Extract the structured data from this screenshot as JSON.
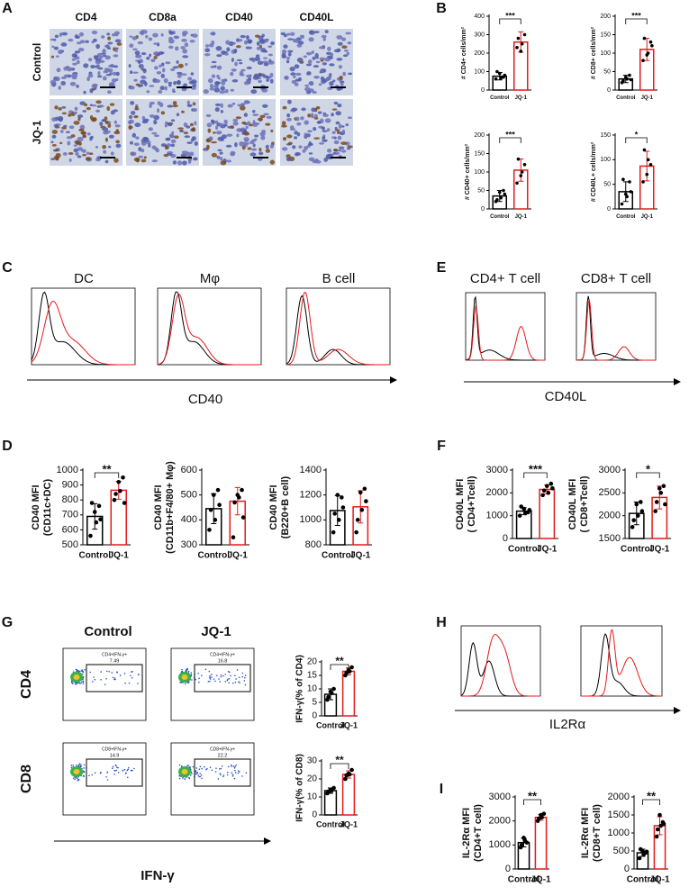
{
  "panel_labels": [
    "A",
    "B",
    "C",
    "D",
    "E",
    "F",
    "G",
    "H",
    "I"
  ],
  "ihc": {
    "columns": [
      "CD4",
      "CD8a",
      "CD40",
      "CD40L"
    ],
    "rows": [
      "Control",
      "JQ-1"
    ]
  },
  "flow_C": {
    "titles": [
      "DC",
      "Mφ",
      "B cell"
    ],
    "axis": "CD40"
  },
  "flow_E": {
    "titles": [
      "CD4+ T cell",
      "CD8+ T cell"
    ],
    "axis": "CD40L"
  },
  "flow_G": {
    "columns": [
      "Control",
      "JQ-1"
    ],
    "rows": [
      "CD4",
      "CD8"
    ],
    "axis": "IFN-γ",
    "gates": [
      [
        "CD4+IFN-γ+",
        "7.49"
      ],
      [
        "CD4+IFN-γ+",
        "16.8"
      ],
      [
        "CD8+IFN-γ+",
        "14.9"
      ],
      [
        "CD8+IFN-γ+",
        "22.2"
      ]
    ]
  },
  "flow_H": {
    "axis": "IL2Rα"
  },
  "chart_data": [
    {
      "type": "bar",
      "ylabel": "# CD4+ cells/mm²",
      "categories": [
        "Control",
        "JQ-1"
      ],
      "colors": [
        "#000000",
        "#e41a1c"
      ],
      "values": [
        75,
        260
      ],
      "errors": [
        20,
        55
      ],
      "points": [
        [
          60,
          90,
          70,
          100,
          65,
          80
        ],
        [
          230,
          210,
          300,
          280,
          250
        ]
      ],
      "ylim": [
        0,
        400
      ],
      "yticks": [
        0,
        100,
        200,
        300,
        400
      ],
      "significance": "***"
    },
    {
      "type": "bar",
      "ylabel": "# CD8+ cells/mm²",
      "categories": [
        "Control",
        "JQ-1"
      ],
      "colors": [
        "#000000",
        "#e41a1c"
      ],
      "values": [
        30,
        110
      ],
      "errors": [
        10,
        30
      ],
      "points": [
        [
          20,
          35,
          40,
          25,
          30,
          28
        ],
        [
          80,
          95,
          130,
          140,
          100,
          120
        ]
      ],
      "ylim": [
        0,
        200
      ],
      "yticks": [
        0,
        50,
        100,
        150,
        200
      ],
      "significance": "***"
    },
    {
      "type": "bar",
      "ylabel": "# CD40+ cells/mm²",
      "categories": [
        "Control",
        "JQ-1"
      ],
      "colors": [
        "#000000",
        "#e41a1c"
      ],
      "values": [
        35,
        105
      ],
      "errors": [
        15,
        30
      ],
      "points": [
        [
          20,
          45,
          50,
          25,
          30,
          40
        ],
        [
          70,
          90,
          120,
          135,
          100
        ]
      ],
      "ylim": [
        0,
        200
      ],
      "yticks": [
        0,
        50,
        100,
        150,
        200
      ],
      "significance": "***"
    },
    {
      "type": "bar",
      "ylabel": "# CD40L+ cells/mm²",
      "categories": [
        "Control",
        "JQ-1"
      ],
      "colors": [
        "#000000",
        "#e41a1c"
      ],
      "values": [
        35,
        87
      ],
      "errors": [
        20,
        30
      ],
      "points": [
        [
          10,
          30,
          55,
          60,
          25,
          35
        ],
        [
          55,
          70,
          90,
          120,
          100
        ]
      ],
      "ylim": [
        0,
        150
      ],
      "yticks": [
        0,
        50,
        100,
        150
      ],
      "significance": "*"
    },
    {
      "type": "bar",
      "ylabel": [
        "CD40 MFI",
        "(CD11c+DC)"
      ],
      "categories": [
        "Control",
        "JQ-1"
      ],
      "colors": [
        "#000000",
        "#e41a1c"
      ],
      "values": [
        690,
        865
      ],
      "errors": [
        85,
        60
      ],
      "points": [
        [
          560,
          720,
          760,
          780,
          650,
          670
        ],
        [
          800,
          920,
          950,
          840,
          860,
          780
        ]
      ],
      "ylim": [
        500,
        1000
      ],
      "yticks": [
        500,
        600,
        700,
        800,
        900,
        1000
      ],
      "significance": "**"
    },
    {
      "type": "bar",
      "ylabel": [
        "CD40 MFI",
        "(CD11b+F4/80+ Mφ)"
      ],
      "categories": [
        "Control",
        "JQ-1"
      ],
      "colors": [
        "#000000",
        "#e41a1c"
      ],
      "values": [
        445,
        475
      ],
      "errors": [
        60,
        55
      ],
      "points": [
        [
          360,
          500,
          520,
          440,
          400,
          460
        ],
        [
          330,
          500,
          520,
          470,
          490,
          410
        ]
      ],
      "ylim": [
        300,
        600
      ],
      "yticks": [
        300,
        400,
        500,
        600
      ]
    },
    {
      "type": "bar",
      "ylabel": [
        "CD40 MFI",
        "(B220+B cell)"
      ],
      "categories": [
        "Control",
        "JQ-1"
      ],
      "colors": [
        "#000000",
        "#e41a1c"
      ],
      "values": [
        1075,
        1105
      ],
      "errors": [
        120,
        130
      ],
      "points": [
        [
          900,
          1200,
          1180,
          1050,
          1000,
          1100
        ],
        [
          900,
          1220,
          1250,
          1000,
          1080,
          1150
        ]
      ],
      "ylim": [
        800,
        1400
      ],
      "yticks": [
        800,
        1000,
        1200,
        1400
      ]
    },
    {
      "type": "bar",
      "ylabel": [
        "CD40L MFI",
        "( CD4+Tcell)"
      ],
      "categories": [
        "Control",
        "JQ-1"
      ],
      "colors": [
        "#000000",
        "#e41a1c"
      ],
      "values": [
        1200,
        2150
      ],
      "errors": [
        150,
        200
      ],
      "points": [
        [
          1000,
          1300,
          1150,
          1400,
          1100,
          1250
        ],
        [
          1900,
          2300,
          2400,
          2100,
          2000,
          2200
        ]
      ],
      "ylim": [
        0,
        3000
      ],
      "yticks": [
        0,
        1000,
        2000,
        3000
      ],
      "significance": "***"
    },
    {
      "type": "bar",
      "ylabel": [
        "CD40L MFI",
        "( CD8+Tcell)"
      ],
      "categories": [
        "Control",
        "JQ-1"
      ],
      "colors": [
        "#000000",
        "#e41a1c"
      ],
      "values": [
        2050,
        2400
      ],
      "errors": [
        250,
        250
      ],
      "points": [
        [
          1750,
          2250,
          2300,
          1900,
          2000,
          2100
        ],
        [
          2100,
          2600,
          2650,
          2300,
          2500,
          2250
        ]
      ],
      "ylim": [
        1500,
        3000
      ],
      "yticks": [
        1500,
        2000,
        2500,
        3000
      ],
      "significance": "*"
    },
    {
      "type": "bar",
      "ylabel": "IFN-γ(% of CD4)",
      "categories": [
        "Control",
        "JQ-1"
      ],
      "colors": [
        "#000000",
        "#e41a1c"
      ],
      "values": [
        8,
        16.5
      ],
      "errors": [
        2,
        1.3
      ],
      "points": [
        [
          6,
          9,
          10,
          7,
          8.5
        ],
        [
          15,
          17,
          18,
          16,
          16.5
        ]
      ],
      "ylim": [
        0,
        20
      ],
      "yticks": [
        0,
        5,
        10,
        15,
        20
      ],
      "significance": "**"
    },
    {
      "type": "bar",
      "ylabel": "IFN-γ(% of CD8)",
      "categories": [
        "Control",
        "JQ-1"
      ],
      "colors": [
        "#000000",
        "#e41a1c"
      ],
      "values": [
        13.5,
        22.5
      ],
      "errors": [
        1.5,
        2
      ],
      "points": [
        [
          12,
          14,
          15,
          13,
          13.5
        ],
        [
          20,
          23,
          25,
          22,
          22.5
        ]
      ],
      "ylim": [
        0,
        30
      ],
      "yticks": [
        0,
        10,
        20,
        30
      ],
      "significance": "**"
    },
    {
      "type": "bar",
      "ylabel": [
        "IL-2Rα MFI",
        "(CD4+T cell)"
      ],
      "categories": [
        "Control",
        "JQ-1"
      ],
      "colors": [
        "#000000",
        "#e41a1c"
      ],
      "values": [
        1100,
        2150
      ],
      "errors": [
        180,
        120
      ],
      "points": [
        [
          900,
          1300,
          1100,
          1000,
          1200
        ],
        [
          2000,
          2250,
          2300,
          2100,
          2150
        ]
      ],
      "ylim": [
        0,
        3000
      ],
      "yticks": [
        0,
        1000,
        2000,
        3000
      ],
      "significance": "**"
    },
    {
      "type": "bar",
      "ylabel": [
        "IL-2Rα MFI",
        "(CD8+T cell)"
      ],
      "categories": [
        "Control",
        "JQ-1"
      ],
      "colors": [
        "#000000",
        "#e41a1c"
      ],
      "values": [
        450,
        1200
      ],
      "errors": [
        100,
        250
      ],
      "points": [
        [
          300,
          500,
          450,
          550,
          400,
          480
        ],
        [
          900,
          1500,
          1300,
          1100,
          1200,
          1250
        ]
      ],
      "ylim": [
        0,
        2000
      ],
      "yticks": [
        0,
        500,
        1000,
        1500,
        2000
      ],
      "significance": "**"
    }
  ]
}
